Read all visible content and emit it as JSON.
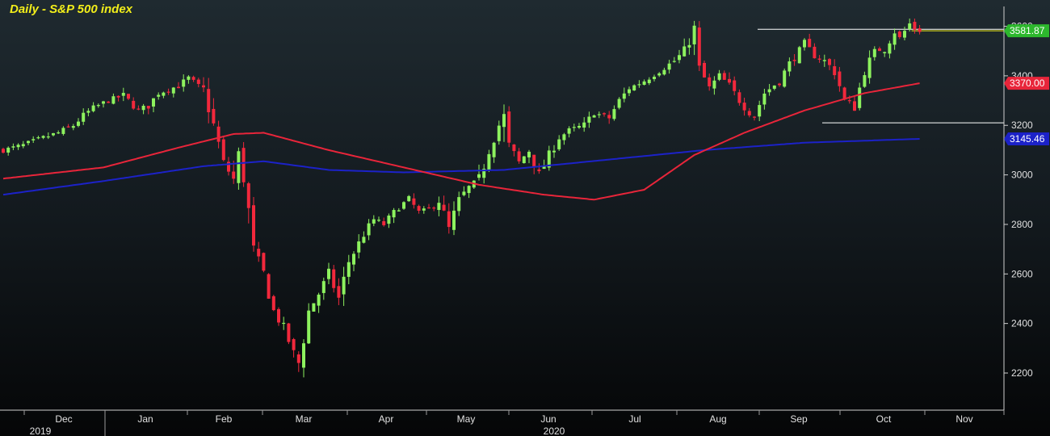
{
  "chart_data": {
    "type": "candlestick",
    "title": "Daily - S&P 500 index",
    "xlabel": "",
    "ylabel": "",
    "ylim": [
      2050,
      3680
    ],
    "y_ticks": [
      2200,
      2400,
      2600,
      2800,
      3000,
      3200,
      3400,
      3600
    ],
    "x_ticks": [
      "Dec",
      "Jan",
      "Feb",
      "Mar",
      "Apr",
      "May",
      "Jun",
      "Jul",
      "Aug",
      "Sep",
      "Oct",
      "Nov"
    ],
    "year_labels": [
      "2019",
      "2020"
    ],
    "grid": false,
    "last_price": {
      "value": 3581.87,
      "label": "3581.87"
    },
    "moving_averages": [
      {
        "label": "3370.00",
        "color": "#e8253a",
        "value": 3370.0
      },
      {
        "label": "3145.46",
        "color": "#1c22c8",
        "value": 3145.46
      }
    ],
    "range_box": {
      "high": 3588,
      "low": 3210,
      "start": "Sep"
    },
    "price_path": [
      [
        0,
        3100
      ],
      [
        4,
        3120
      ],
      [
        8,
        3150
      ],
      [
        11,
        3170
      ],
      [
        14,
        3200
      ],
      [
        16,
        3240
      ],
      [
        18,
        3270
      ],
      [
        21,
        3300
      ],
      [
        24,
        3320
      ],
      [
        27,
        3260
      ],
      [
        29,
        3280
      ],
      [
        31,
        3330
      ],
      [
        35,
        3360
      ],
      [
        37,
        3390
      ],
      [
        40,
        3340
      ],
      [
        42,
        3200
      ],
      [
        44,
        3050
      ],
      [
        46,
        2980
      ],
      [
        47,
        3080
      ],
      [
        48,
        3000
      ],
      [
        50,
        2700
      ],
      [
        52,
        2600
      ],
      [
        54,
        2450
      ],
      [
        56,
        2380
      ],
      [
        58,
        2280
      ],
      [
        59,
        2240
      ],
      [
        61,
        2450
      ],
      [
        63,
        2520
      ],
      [
        65,
        2600
      ],
      [
        67,
        2500
      ],
      [
        69,
        2650
      ],
      [
        72,
        2760
      ],
      [
        74,
        2820
      ],
      [
        76,
        2800
      ],
      [
        79,
        2870
      ],
      [
        81,
        2900
      ],
      [
        83,
        2850
      ],
      [
        85,
        2860
      ],
      [
        87,
        2900
      ],
      [
        89,
        2780
      ],
      [
        91,
        2900
      ],
      [
        93,
        2950
      ],
      [
        95,
        2980
      ],
      [
        97,
        3100
      ],
      [
        99,
        3200
      ],
      [
        100,
        3230
      ],
      [
        101,
        3120
      ],
      [
        103,
        3050
      ],
      [
        105,
        3100
      ],
      [
        107,
        3000
      ],
      [
        109,
        3080
      ],
      [
        111,
        3150
      ],
      [
        113,
        3180
      ],
      [
        116,
        3200
      ],
      [
        118,
        3250
      ],
      [
        121,
        3230
      ],
      [
        123,
        3300
      ],
      [
        125,
        3350
      ],
      [
        128,
        3380
      ],
      [
        131,
        3420
      ],
      [
        134,
        3460
      ],
      [
        136,
        3500
      ],
      [
        138,
        3580
      ],
      [
        139,
        3430
      ],
      [
        141,
        3350
      ],
      [
        143,
        3400
      ],
      [
        145,
        3360
      ],
      [
        147,
        3300
      ],
      [
        149,
        3250
      ],
      [
        150,
        3240
      ],
      [
        152,
        3330
      ],
      [
        155,
        3380
      ],
      [
        157,
        3450
      ],
      [
        159,
        3500
      ],
      [
        160,
        3530
      ],
      [
        162,
        3480
      ],
      [
        164,
        3460
      ],
      [
        166,
        3420
      ],
      [
        168,
        3300
      ],
      [
        170,
        3280
      ],
      [
        172,
        3420
      ],
      [
        174,
        3500
      ],
      [
        176,
        3510
      ],
      [
        178,
        3580
      ],
      [
        179,
        3550
      ],
      [
        181,
        3610
      ],
      [
        182,
        3590
      ],
      [
        183,
        3581.87
      ]
    ],
    "ma_red_path": [
      [
        0,
        2985
      ],
      [
        20,
        3030
      ],
      [
        35,
        3110
      ],
      [
        46,
        3165
      ],
      [
        52,
        3170
      ],
      [
        65,
        3100
      ],
      [
        80,
        3030
      ],
      [
        95,
        2960
      ],
      [
        108,
        2920
      ],
      [
        118,
        2900
      ],
      [
        128,
        2940
      ],
      [
        138,
        3080
      ],
      [
        148,
        3170
      ],
      [
        160,
        3260
      ],
      [
        172,
        3330
      ],
      [
        183,
        3370
      ]
    ],
    "ma_blue_path": [
      [
        0,
        2920
      ],
      [
        20,
        2975
      ],
      [
        40,
        3035
      ],
      [
        52,
        3055
      ],
      [
        65,
        3020
      ],
      [
        80,
        3010
      ],
      [
        100,
        3020
      ],
      [
        120,
        3060
      ],
      [
        140,
        3100
      ],
      [
        160,
        3130
      ],
      [
        175,
        3140
      ],
      [
        183,
        3145.46
      ]
    ]
  }
}
